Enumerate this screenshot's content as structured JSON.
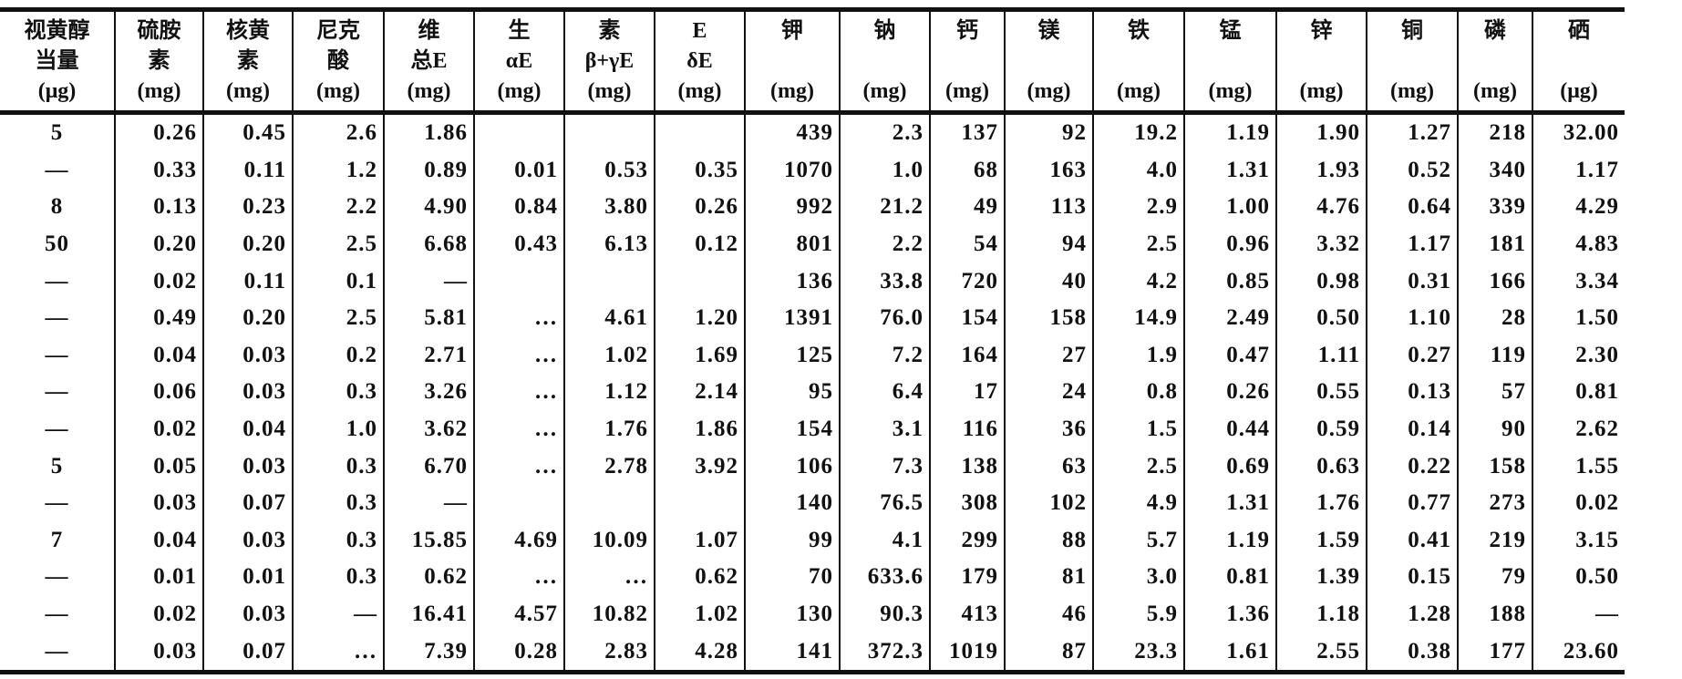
{
  "table": {
    "headers": [
      [
        "视黄醇",
        "当量",
        "(μg)"
      ],
      [
        "硫胺",
        "素",
        "(mg)"
      ],
      [
        "核黄",
        "素",
        "(mg)"
      ],
      [
        "尼克",
        "酸",
        "(mg)"
      ],
      [
        "维",
        "总E",
        "(mg)"
      ],
      [
        "生",
        "αE",
        "(mg)"
      ],
      [
        "素",
        "β+γE",
        "(mg)"
      ],
      [
        "E",
        "δE",
        "(mg)"
      ],
      [
        "钾",
        "",
        "(mg)"
      ],
      [
        "钠",
        "",
        "(mg)"
      ],
      [
        "钙",
        "",
        "(mg)"
      ],
      [
        "镁",
        "",
        "(mg)"
      ],
      [
        "铁",
        "",
        "(mg)"
      ],
      [
        "锰",
        "",
        "(mg)"
      ],
      [
        "锌",
        "",
        "(mg)"
      ],
      [
        "铜",
        "",
        "(mg)"
      ],
      [
        "磷",
        "",
        "(mg)"
      ],
      [
        "硒",
        "",
        "(μg)"
      ]
    ],
    "rows": [
      [
        "5",
        "0.26",
        "0.45",
        "2.6",
        "1.86",
        "",
        "",
        "",
        "439",
        "2.3",
        "137",
        "92",
        "19.2",
        "1.19",
        "1.90",
        "1.27",
        "218",
        "32.00"
      ],
      [
        "—",
        "0.33",
        "0.11",
        "1.2",
        "0.89",
        "0.01",
        "0.53",
        "0.35",
        "1070",
        "1.0",
        "68",
        "163",
        "4.0",
        "1.31",
        "1.93",
        "0.52",
        "340",
        "1.17"
      ],
      [
        "8",
        "0.13",
        "0.23",
        "2.2",
        "4.90",
        "0.84",
        "3.80",
        "0.26",
        "992",
        "21.2",
        "49",
        "113",
        "2.9",
        "1.00",
        "4.76",
        "0.64",
        "339",
        "4.29"
      ],
      [
        "50",
        "0.20",
        "0.20",
        "2.5",
        "6.68",
        "0.43",
        "6.13",
        "0.12",
        "801",
        "2.2",
        "54",
        "94",
        "2.5",
        "0.96",
        "3.32",
        "1.17",
        "181",
        "4.83"
      ],
      [
        "—",
        "0.02",
        "0.11",
        "0.1",
        "—",
        "",
        "",
        "",
        "136",
        "33.8",
        "720",
        "40",
        "4.2",
        "0.85",
        "0.98",
        "0.31",
        "166",
        "3.34"
      ],
      [
        "—",
        "0.49",
        "0.20",
        "2.5",
        "5.81",
        "…",
        "4.61",
        "1.20",
        "1391",
        "76.0",
        "154",
        "158",
        "14.9",
        "2.49",
        "0.50",
        "1.10",
        "28",
        "1.50"
      ],
      [
        "—",
        "0.04",
        "0.03",
        "0.2",
        "2.71",
        "…",
        "1.02",
        "1.69",
        "125",
        "7.2",
        "164",
        "27",
        "1.9",
        "0.47",
        "1.11",
        "0.27",
        "119",
        "2.30"
      ],
      [
        "—",
        "0.06",
        "0.03",
        "0.3",
        "3.26",
        "…",
        "1.12",
        "2.14",
        "95",
        "6.4",
        "17",
        "24",
        "0.8",
        "0.26",
        "0.55",
        "0.13",
        "57",
        "0.81"
      ],
      [
        "—",
        "0.02",
        "0.04",
        "1.0",
        "3.62",
        "…",
        "1.76",
        "1.86",
        "154",
        "3.1",
        "116",
        "36",
        "1.5",
        "0.44",
        "0.59",
        "0.14",
        "90",
        "2.62"
      ],
      [
        "5",
        "0.05",
        "0.03",
        "0.3",
        "6.70",
        "…",
        "2.78",
        "3.92",
        "106",
        "7.3",
        "138",
        "63",
        "2.5",
        "0.69",
        "0.63",
        "0.22",
        "158",
        "1.55"
      ],
      [
        "—",
        "0.03",
        "0.07",
        "0.3",
        "—",
        "",
        "",
        "",
        "140",
        "76.5",
        "308",
        "102",
        "4.9",
        "1.31",
        "1.76",
        "0.77",
        "273",
        "0.02"
      ],
      [
        "7",
        "0.04",
        "0.03",
        "0.3",
        "15.85",
        "4.69",
        "10.09",
        "1.07",
        "99",
        "4.1",
        "299",
        "88",
        "5.7",
        "1.19",
        "1.59",
        "0.41",
        "219",
        "3.15"
      ],
      [
        "—",
        "0.01",
        "0.01",
        "0.3",
        "0.62",
        "…",
        "…",
        "0.62",
        "70",
        "633.6",
        "179",
        "81",
        "3.0",
        "0.81",
        "1.39",
        "0.15",
        "79",
        "0.50"
      ],
      [
        "—",
        "0.02",
        "0.03",
        "—",
        "16.41",
        "4.57",
        "10.82",
        "1.02",
        "130",
        "90.3",
        "413",
        "46",
        "5.9",
        "1.36",
        "1.18",
        "1.28",
        "188",
        "—"
      ],
      [
        "—",
        "0.03",
        "0.07",
        "…",
        "7.39",
        "0.28",
        "2.83",
        "4.28",
        "141",
        "372.3",
        "1019",
        "87",
        "23.3",
        "1.61",
        "2.55",
        "0.38",
        "177",
        "23.60"
      ]
    ]
  }
}
